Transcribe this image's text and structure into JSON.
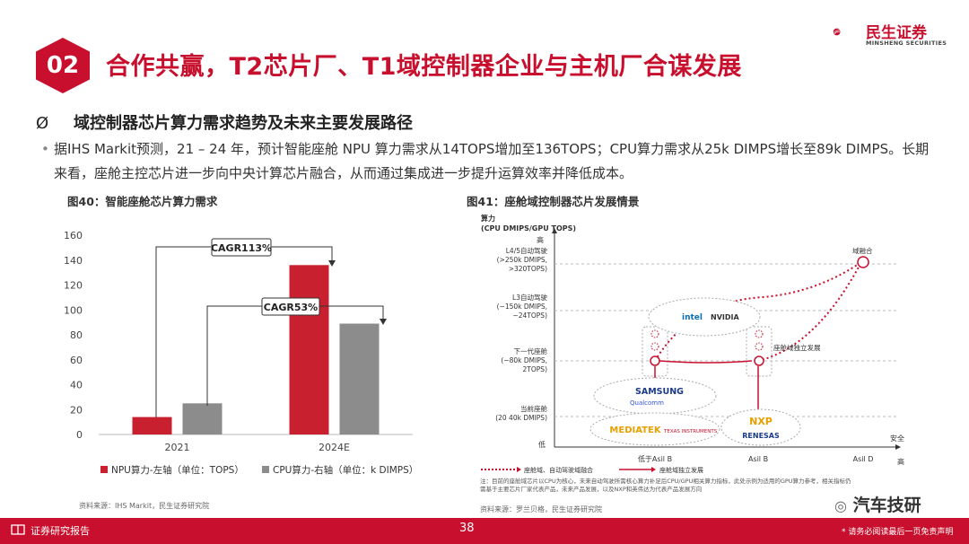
{
  "header": {
    "section_number": "02",
    "title": "合作共赢，T2芯片厂、T1域控制器企业与主机厂合谋发展",
    "logo_cn": "民生证券",
    "logo_en": "MINSHENG SECURITIES"
  },
  "heading": {
    "symbol": "Ø",
    "text": "域控制器芯片算力需求趋势及未来主要发展路径"
  },
  "bullet": {
    "text": "据IHS Markit预测，21 – 24 年，预计智能座舱 NPU 算力需求从14TOPS增加至136TOPS；CPU算力需求从25k DIMPS增长至89k DIMPS。长期来看，座舱主控芯片进一步向中央计算芯片融合，从而通过集成进一步提升运算效率并降低成本。"
  },
  "fig40": {
    "title": "图40：智能座舱芯片算力需求",
    "source": "资料来源：IHS Markit，民生证券研究院",
    "annotations": [
      "CAGR113%",
      "CAGR53%"
    ]
  },
  "chart_data": {
    "type": "bar",
    "categories": [
      "2021",
      "2024E"
    ],
    "series": [
      {
        "name": "NPU算力-左轴（单位：TOPS）",
        "values": [
          14,
          136
        ],
        "color": "#c8202f"
      },
      {
        "name": "CPU算力-右轴（单位：k DIMPS）",
        "values": [
          25,
          89
        ],
        "color": "#8c8c8c"
      }
    ],
    "yticks": [
      0,
      20,
      40,
      60,
      80,
      100,
      120,
      140,
      160
    ],
    "ylim": [
      0,
      160
    ],
    "legend_position": "bottom",
    "grid": false
  },
  "fig41": {
    "title": "图41：座舱域控制器芯片发展情景",
    "y_axis_title": "算力\n(CPU DMIPS/GPU TOPS)",
    "y_high": "高",
    "y_low": "低",
    "x_axis_title": "安全",
    "x_high": "高",
    "x_ticks": [
      "低于Asil B",
      "Asil B",
      "Asil D"
    ],
    "y_levels": [
      "L4/5自动驾驶\n(>250k DMIPS,\n>320TOPS)",
      "L3自动驾驶\n(~150k DMIPS,\n~24TOPS)",
      "下一代座舱\n(~80k DMIPS,\n2TOPS)",
      "当前座舱\n(20 40k DMIPS)"
    ],
    "labels": {
      "fusion": "域融合",
      "independent": "座舱域独立发展"
    },
    "brands": [
      "intel",
      "NVIDIA",
      "SAMSUNG",
      "Qualcomm",
      "MEDIATEK",
      "TEXAS INSTRUMENTS",
      "NXP",
      "RENESAS"
    ],
    "legend": [
      "座舱域、自动驾驶域融合",
      "座舱域独立发展"
    ],
    "note": "注：目前的座舱域芯片以CPU为核心，未来自动驾驶所需核心算力补足后CPU/GPU相关算力指标，此处示例为适用的GPU算力参考，相关指标仍需基于主要芯片厂家代表产品，未来产品发展，以及NXP和英伟达为代表产品发展方向",
    "source": "资料来源：罗兰贝格，民生证券研究院"
  },
  "footer": {
    "label": "证券研究报告",
    "page": "38",
    "wechat": "汽车技研",
    "disclaimer": "* 请务必阅读最后一页免责声明"
  }
}
